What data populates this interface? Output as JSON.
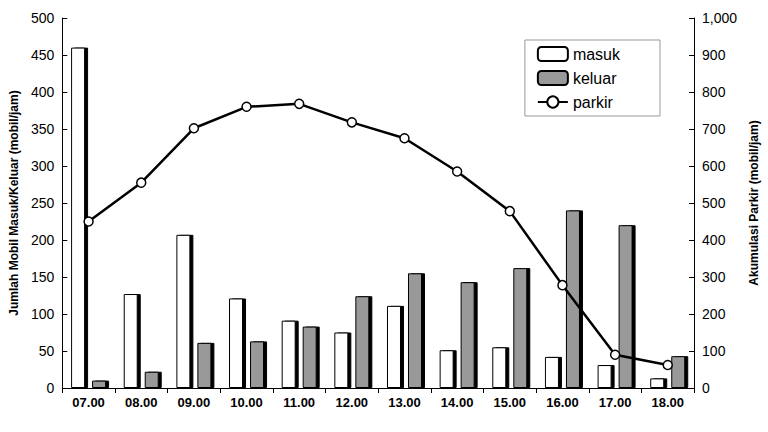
{
  "chart_data": {
    "type": "bar",
    "categories": [
      "07.00",
      "08.00",
      "09.00",
      "10.00",
      "11.00",
      "12.00",
      "13.00",
      "14.00",
      "15.00",
      "16.00",
      "17.00",
      "18.00"
    ],
    "y_label": "Jumlah Mobil Masuk/Keluar (mobil/jam)",
    "y2_label": "Akumulasi Parkir (mobil/jam)",
    "ylim": [
      0,
      500
    ],
    "yticks": [
      0,
      50,
      100,
      150,
      200,
      250,
      300,
      350,
      400,
      450,
      500
    ],
    "y2lim": [
      0,
      1000
    ],
    "y2ticks": [
      0,
      100,
      200,
      300,
      400,
      500,
      600,
      700,
      800,
      900,
      1000
    ],
    "grid": false,
    "legend": "upper right",
    "series": [
      {
        "name": "masuk",
        "type": "bar",
        "color": "#ffffff",
        "values": [
          460,
          127,
          207,
          121,
          91,
          75,
          111,
          51,
          55,
          42,
          31,
          13
        ]
      },
      {
        "name": "keluar",
        "type": "bar",
        "color": "#999999",
        "values": [
          10,
          22,
          61,
          63,
          83,
          124,
          155,
          143,
          162,
          240,
          220,
          43
        ]
      },
      {
        "name": "parkir",
        "type": "line",
        "axis": "y2",
        "color": "#000000",
        "marker": "circle",
        "line_style": "solid",
        "values": [
          450,
          555,
          702,
          760,
          768,
          718,
          675,
          585,
          478,
          278,
          90,
          62
        ]
      }
    ]
  }
}
